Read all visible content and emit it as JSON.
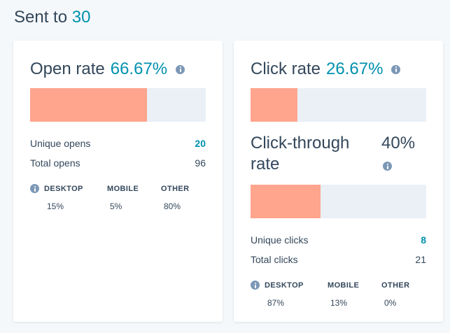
{
  "header": {
    "prefix": "Sent to",
    "count": "30"
  },
  "open_card": {
    "title": "Open rate",
    "rate": "66.67%",
    "rate_fraction": 0.6667,
    "stats": [
      {
        "label": "Unique opens",
        "value": "20"
      },
      {
        "label": "Total opens",
        "value": "96"
      }
    ],
    "devices": {
      "headers": [
        "DESKTOP",
        "MOBILE",
        "OTHER"
      ],
      "values": [
        "15%",
        "5%",
        "80%"
      ]
    }
  },
  "click_card": {
    "title": "Click rate",
    "rate": "26.67%",
    "rate_fraction": 0.2667,
    "ctr_title": "Click-through rate",
    "ctr_value": "40%",
    "ctr_fraction": 0.4,
    "stats": [
      {
        "label": "Unique clicks",
        "value": "8"
      },
      {
        "label": "Total clicks",
        "value": "21"
      }
    ],
    "devices": {
      "headers": [
        "DESKTOP",
        "MOBILE",
        "OTHER"
      ],
      "values": [
        "87%",
        "13%",
        "0%"
      ]
    }
  },
  "colors": {
    "accent": "#0091ae",
    "bar_fill": "#ffa58d",
    "bar_track": "#eaf0f6",
    "text": "#33475b",
    "info_icon": "#7c98b6"
  }
}
